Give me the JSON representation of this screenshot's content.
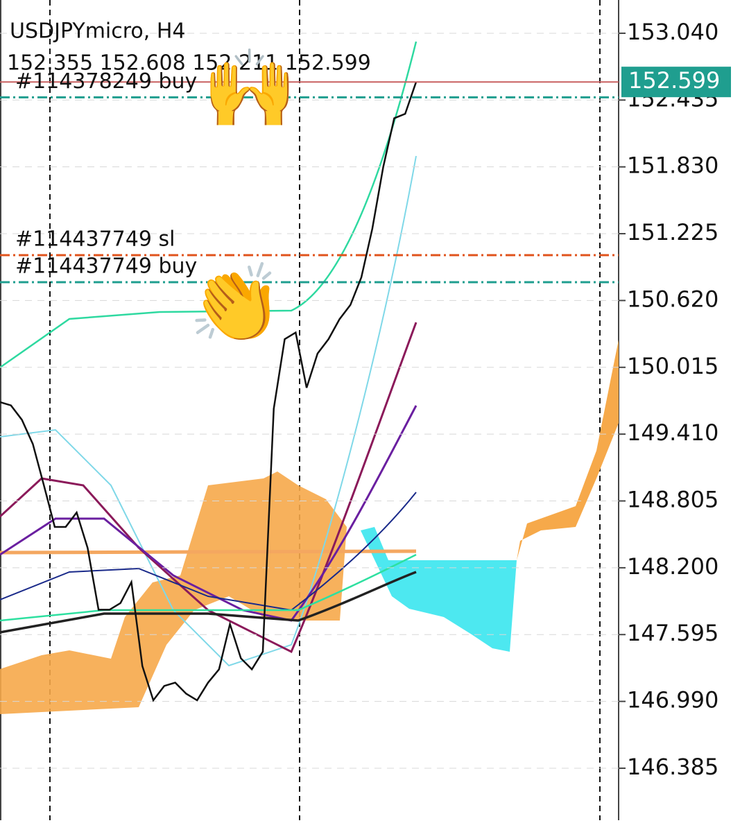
{
  "header": {
    "symbol": "USDJPYmicro, H4",
    "ohlc": "152.355 152.608 152.211 152.599"
  },
  "stickers": {
    "raised_hands": "🙌",
    "clapping": "👏"
  },
  "chart_data": {
    "type": "line",
    "ylim": [
      145.914,
      153.341
    ],
    "yticks": [
      {
        "value": 153.04,
        "label": "153.040"
      },
      152.435,
      {
        "value": 151.83,
        "label": "151.830"
      },
      151.225,
      {
        "value": 150.62,
        "label": "150.620"
      },
      150.015,
      {
        "value": 149.41,
        "label": "149.410"
      },
      148.805,
      {
        "value": 148.2,
        "label": "148.200"
      },
      147.595,
      {
        "value": 146.99,
        "label": "146.990"
      },
      146.385
    ],
    "series": [
      {
        "name": "USDJPYmicro",
        "color": "#111111",
        "values": [
          149.7,
          149.67,
          149.54,
          149.32,
          148.95,
          148.57,
          148.57,
          148.7,
          148.38,
          147.82,
          147.82,
          147.88,
          148.07,
          147.31,
          147.0,
          147.13,
          147.16,
          147.06,
          147.0,
          147.16,
          147.28,
          147.69,
          147.38,
          147.28,
          147.44,
          149.64,
          150.27,
          150.33,
          149.83,
          150.14,
          150.27,
          150.45,
          150.58,
          150.83,
          151.27,
          151.83,
          152.27,
          152.31,
          152.599
        ]
      }
    ],
    "current_price": 152.599,
    "order_lines": [
      {
        "label": "#114437749 sl",
        "value": 151.031,
        "color": "#e0531c"
      },
      {
        "label": "#114437749 buy",
        "value": 150.786,
        "color": "#1f9e8f"
      },
      {
        "label": "#114378249 buy",
        "value": 152.46,
        "color": "#1f9e8f"
      }
    ]
  }
}
